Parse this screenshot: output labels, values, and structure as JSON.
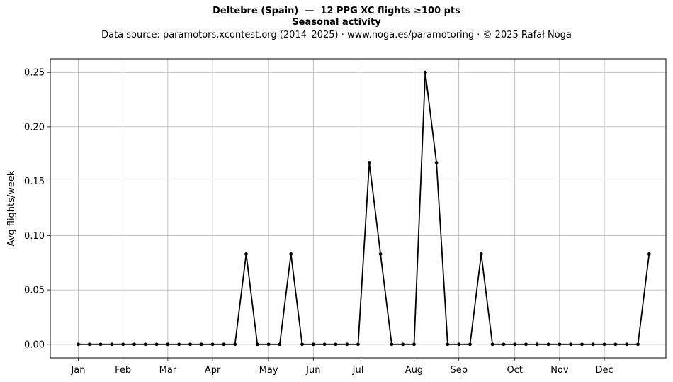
{
  "chart_data": {
    "type": "line",
    "title": "Deltebre (Spain)  —  12 PPG XC flights ≥100 pts",
    "subtitle": "Seasonal activity",
    "source": "Data source: paramotors.xcontest.org (2014–2025)  ·  www.noga.es/paramotoring  ·  © 2025 Rafał Noga",
    "xlabel": "",
    "ylabel": "Avg flights/week",
    "x_unit": "week of year",
    "xlim": [
      -2.5,
      52.5
    ],
    "ylim": [
      -0.0125,
      0.2625
    ],
    "yticks": [
      0.0,
      0.05,
      0.1,
      0.15,
      0.2,
      0.25
    ],
    "ytick_labels": [
      "0.00",
      "0.05",
      "0.10",
      "0.15",
      "0.20",
      "0.25"
    ],
    "xticks": [
      {
        "label": "Jan",
        "week": 0
      },
      {
        "label": "Feb",
        "week": 4
      },
      {
        "label": "Mar",
        "week": 8
      },
      {
        "label": "Apr",
        "week": 12
      },
      {
        "label": "May",
        "week": 17
      },
      {
        "label": "Jun",
        "week": 21
      },
      {
        "label": "Jul",
        "week": 25
      },
      {
        "label": "Aug",
        "week": 30
      },
      {
        "label": "Sep",
        "week": 34
      },
      {
        "label": "Oct",
        "week": 39
      },
      {
        "label": "Nov",
        "week": 43
      },
      {
        "label": "Dec",
        "week": 47
      }
    ],
    "grid": true,
    "line_color": "#000000",
    "series": [
      {
        "x": [
          0,
          1,
          2,
          3,
          4,
          5,
          6,
          7,
          8,
          9,
          10,
          11,
          12,
          13,
          14,
          15,
          16,
          17,
          18,
          19,
          20,
          21,
          22,
          23,
          24,
          25,
          26,
          27,
          28,
          29,
          30,
          31,
          32,
          33,
          34,
          35,
          36,
          37,
          38,
          39,
          40,
          41,
          42,
          43,
          44,
          45,
          46,
          47,
          48,
          49,
          50,
          51
        ],
        "values": [
          0,
          0,
          0,
          0,
          0,
          0,
          0,
          0,
          0,
          0,
          0,
          0,
          0,
          0,
          0,
          0.083,
          0,
          0,
          0,
          0.083,
          0,
          0,
          0,
          0,
          0,
          0,
          0.167,
          0.083,
          0,
          0,
          0,
          0.25,
          0.167,
          0,
          0,
          0,
          0.083,
          0,
          0,
          0,
          0,
          0,
          0,
          0,
          0,
          0,
          0,
          0,
          0,
          0,
          0,
          0.083
        ]
      }
    ]
  }
}
